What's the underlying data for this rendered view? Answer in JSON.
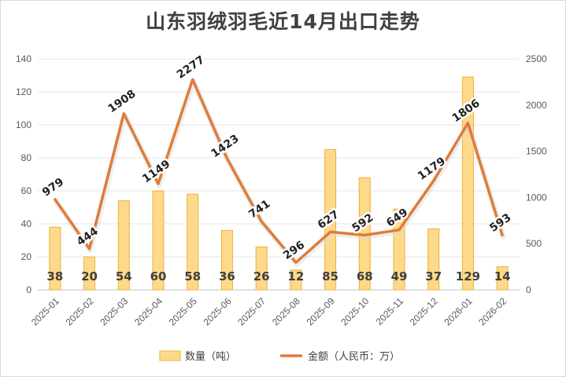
{
  "chart_data": {
    "type": "bar+line",
    "title": "山东羽绒羽毛近14月出口走势",
    "categories": [
      "2025-01",
      "2025-02",
      "2025-03",
      "2025-04",
      "2025-05",
      "2025-06",
      "2025-07",
      "2025-08",
      "2025-09",
      "2025-10",
      "2025-11",
      "2025-12",
      "2026-01",
      "2026-02"
    ],
    "series": [
      {
        "name": "数量（吨）",
        "type": "bar",
        "axis": "left",
        "color": "#FFD98A",
        "edge": "#E8B33A",
        "values": [
          38,
          20,
          54,
          60,
          58,
          36,
          26,
          12,
          85,
          68,
          49,
          37,
          129,
          14
        ]
      },
      {
        "name": "金额（人民币：万）",
        "type": "line",
        "axis": "right",
        "color": "#E07B39",
        "values": [
          979,
          444,
          1908,
          1149,
          2277,
          1423,
          741,
          296,
          627,
          592,
          649,
          1179,
          1806,
          593
        ]
      }
    ],
    "ylim_left": [
      0,
      140
    ],
    "yticks_left": [
      0,
      20,
      40,
      60,
      80,
      100,
      120,
      140
    ],
    "ylim_right": [
      0,
      2500
    ],
    "yticks_right": [
      0,
      500,
      1000,
      1500,
      2000,
      2500
    ],
    "grid": true,
    "legend": "bottom"
  }
}
